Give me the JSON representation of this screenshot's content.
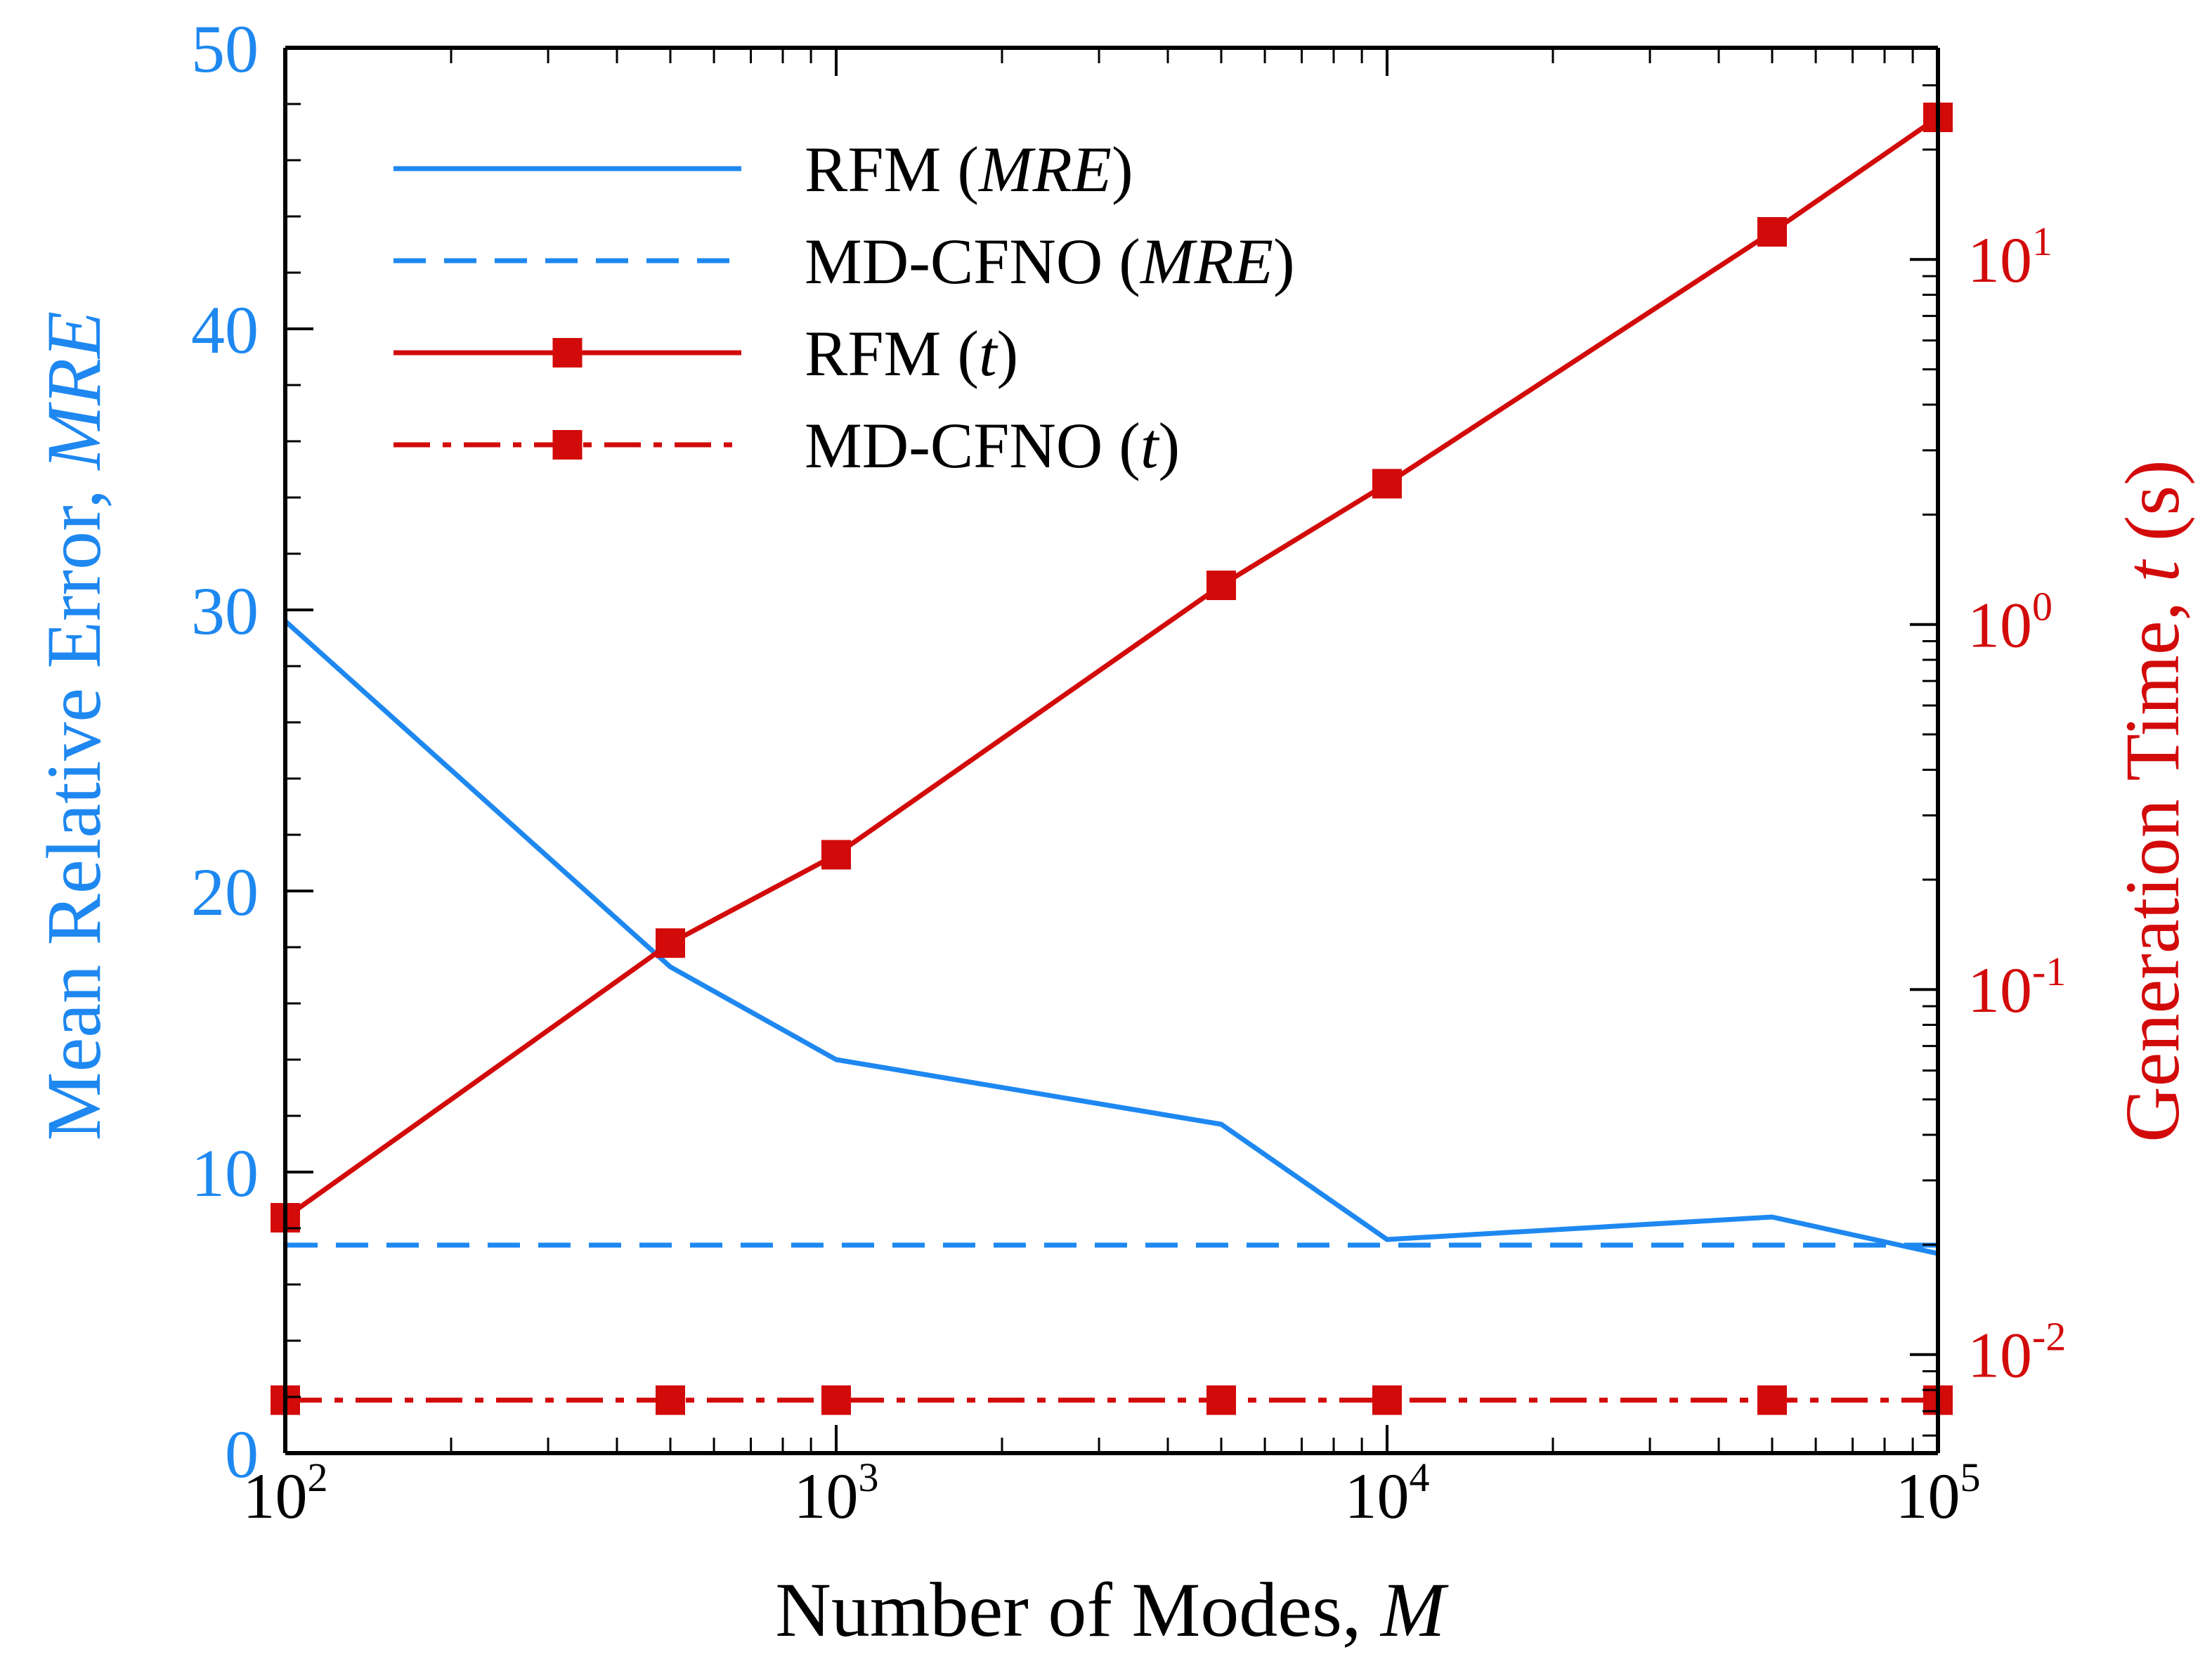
{
  "chart_data": {
    "type": "line",
    "title": "",
    "xlabel": {
      "text": "Number of Modes, ",
      "italic": "M"
    },
    "ylabel_left": {
      "text": "Mean Relative Error, ",
      "italic": "MRE"
    },
    "ylabel_right": {
      "text": "Generation Time, ",
      "italic": "t",
      "suffix": " (s)"
    },
    "x_scale": "log",
    "xlim": [
      100,
      100000
    ],
    "x_ticks": [
      {
        "value": 100,
        "base": "10",
        "exp": "2"
      },
      {
        "value": 1000,
        "base": "10",
        "exp": "3"
      },
      {
        "value": 10000,
        "base": "10",
        "exp": "4"
      },
      {
        "value": 100000,
        "base": "10",
        "exp": "5"
      }
    ],
    "ylim_left": [
      0,
      50
    ],
    "y_ticks_left": [
      {
        "value": 0,
        "label": "0"
      },
      {
        "value": 10,
        "label": "10"
      },
      {
        "value": 20,
        "label": "20"
      },
      {
        "value": 30,
        "label": "30"
      },
      {
        "value": 40,
        "label": "40"
      },
      {
        "value": 50,
        "label": "50"
      }
    ],
    "y_right_scale": "log",
    "ylim_right": [
      0.00537,
      38.0
    ],
    "y_ticks_right": [
      {
        "value": 0.01,
        "base": "10",
        "exp": "-2"
      },
      {
        "value": 0.1,
        "base": "10",
        "exp": "-1"
      },
      {
        "value": 1,
        "base": "10",
        "exp": "0"
      },
      {
        "value": 10,
        "base": "10",
        "exp": "1"
      }
    ],
    "colors": {
      "mre": "#1e88f0",
      "time": "#d20a0a",
      "axis": "#000000"
    },
    "legend": {
      "position": "top-left",
      "entries": [
        {
          "name": "RFM",
          "italic": "MRE",
          "series": "rfm_mre"
        },
        {
          "name": "MD-CFNO",
          "italic": "MRE",
          "series": "cfno_mre"
        },
        {
          "name": "RFM",
          "italic": "t",
          "series": "rfm_t"
        },
        {
          "name": "MD-CFNO",
          "italic": "t",
          "series": "cfno_t"
        }
      ]
    },
    "series": [
      {
        "key": "rfm_mre",
        "name": "RFM (MRE)",
        "axis": "left",
        "style": "solid",
        "color": "mre",
        "marker": "none",
        "x": [
          100,
          500,
          1000,
          5000,
          10000,
          50000,
          100000
        ],
        "values": [
          29.6,
          17.3,
          14.0,
          11.7,
          7.6,
          8.4,
          7.1
        ]
      },
      {
        "key": "cfno_mre",
        "name": "MD-CFNO (MRE)",
        "axis": "left",
        "style": "dashed",
        "color": "mre",
        "marker": "none",
        "x": [
          100,
          100000
        ],
        "values": [
          7.4,
          7.4
        ]
      },
      {
        "key": "rfm_t",
        "name": "RFM (t)",
        "axis": "right",
        "style": "solid",
        "color": "time",
        "marker": "square",
        "x": [
          100,
          500,
          1000,
          5000,
          10000,
          50000,
          100000
        ],
        "values": [
          0.0237,
          0.134,
          0.234,
          1.28,
          2.43,
          11.9,
          24.5
        ]
      },
      {
        "key": "cfno_t",
        "name": "MD-CFNO (t)",
        "axis": "right",
        "style": "dashdot",
        "color": "time",
        "marker": "square",
        "x": [
          100,
          500,
          1000,
          5000,
          10000,
          50000,
          100000
        ],
        "values": [
          0.0075,
          0.0075,
          0.0075,
          0.0075,
          0.0075,
          0.0075,
          0.0075
        ]
      }
    ]
  }
}
